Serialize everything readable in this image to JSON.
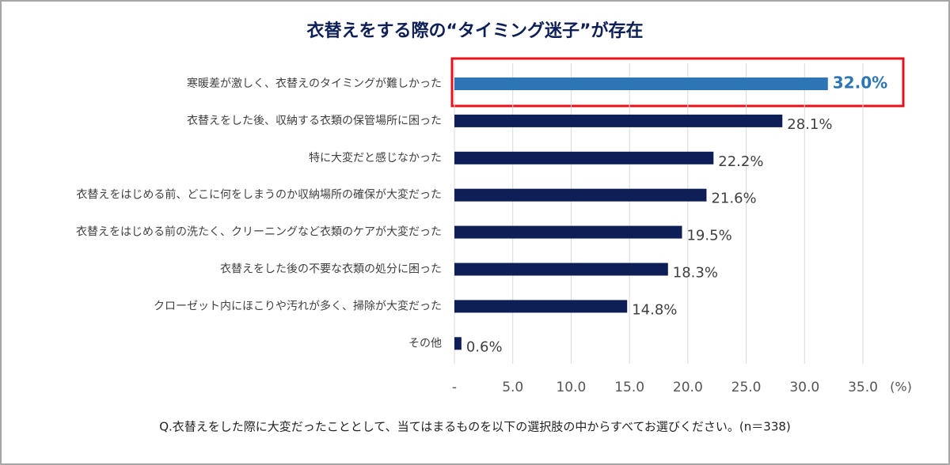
{
  "chart_data": {
    "type": "barh",
    "title": "衣替えをする際の“タイミング迷子”が存在",
    "categories": [
      "寒暖差が激しく、衣替えのタイミングが難しかった",
      "衣替えをした後、収納する衣類の保管場所に困った",
      "特に大変だと感じなかった",
      "衣替えをはじめる前、どこに何をしまうのか収納場所の確保が大変だった",
      "衣替えをはじめる前の洗たく、クリーニングなど衣類のケアが大変だった",
      "衣替えをした後の不要な衣類の処分に困った",
      "クローゼット内にほこりや汚れが多く、掃除が大変だった",
      "その他"
    ],
    "values": [
      32.0,
      28.1,
      22.2,
      21.6,
      19.5,
      18.3,
      14.8,
      0.6
    ],
    "value_labels": [
      "32.0%",
      "28.1%",
      "22.2%",
      "21.6%",
      "19.5%",
      "18.3%",
      "14.8%",
      "0.6%"
    ],
    "colors": [
      "#2e75b6",
      "#0d1f56",
      "#0d1f56",
      "#0d1f56",
      "#0d1f56",
      "#0d1f56",
      "#0d1f56",
      "#0d1f56"
    ],
    "xlim": [
      0,
      35
    ],
    "xticks": [
      {
        "value": 0,
        "label": "-"
      },
      {
        "value": 5,
        "label": "5.0"
      },
      {
        "value": 10,
        "label": "10.0"
      },
      {
        "value": 15,
        "label": "15.0"
      },
      {
        "value": 20,
        "label": "20.0"
      },
      {
        "value": 25,
        "label": "25.0"
      },
      {
        "value": 30,
        "label": "30.0"
      },
      {
        "value": 35,
        "label": "35.0"
      }
    ],
    "xlabel": "(%)",
    "grid": true,
    "note": "Q.衣替えをした際に大変だったこととして、当てはまるものを以下の選択肢の中からすべてお選びください。(n＝338)"
  }
}
